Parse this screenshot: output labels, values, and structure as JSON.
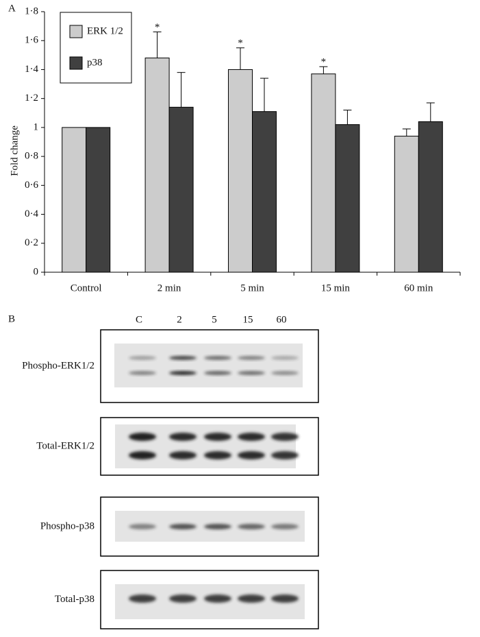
{
  "panel_a_label": "A",
  "chart_data": {
    "type": "bar",
    "y_label": "Fold change",
    "categories": [
      "Control",
      "2 min",
      "5 min",
      "15 min",
      "60 min"
    ],
    "series": [
      {
        "name": "ERK 1/2",
        "color": "#cccccc",
        "values": [
          1.0,
          1.48,
          1.4,
          1.37,
          0.94
        ],
        "errors": [
          null,
          0.18,
          0.15,
          0.05,
          0.05
        ],
        "markers": [
          null,
          "*",
          "*",
          "*",
          null
        ]
      },
      {
        "name": "p38",
        "color": "#404040",
        "values": [
          1.0,
          1.14,
          1.11,
          1.02,
          1.04
        ],
        "errors": [
          null,
          0.24,
          0.23,
          0.1,
          0.13
        ]
      }
    ],
    "ylim": [
      0,
      1.8
    ],
    "yticks": [
      0,
      {
        "value": 0.2,
        "label": "0·2"
      },
      {
        "value": 0.4,
        "label": "0·4"
      },
      {
        "value": 0.6,
        "label": "0·6"
      },
      {
        "value": 0.8,
        "label": "0·8"
      },
      1,
      {
        "value": 1.2,
        "label": "1·2"
      },
      {
        "value": 1.4,
        "label": "1·4"
      },
      {
        "value": 1.6,
        "label": "1·6"
      },
      {
        "value": 1.8,
        "label": "1·8"
      }
    ],
    "legend": "upper left"
  },
  "panel_b": {
    "label": "B",
    "lanes": [
      "C",
      "2",
      "5",
      "15",
      "60"
    ],
    "blots": [
      "Phospho-ERK1/2",
      "Total-ERK1/2",
      "Phospho-p38",
      "Total-p38"
    ]
  }
}
